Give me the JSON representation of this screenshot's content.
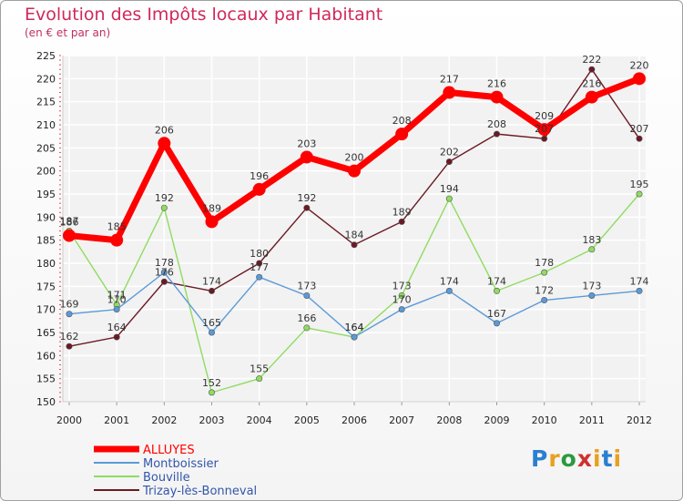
{
  "chart_data": {
    "type": "line",
    "title": "Evolution des Impôts locaux par Habitant",
    "subtitle": "(en € et par an)",
    "xlabel": "",
    "ylabel": "",
    "ylim": [
      150,
      225
    ],
    "y_ticks": [
      150,
      155,
      160,
      165,
      170,
      175,
      180,
      185,
      190,
      195,
      200,
      205,
      210,
      215,
      220,
      225
    ],
    "categories": [
      "2000",
      "2001",
      "2002",
      "2003",
      "2004",
      "2005",
      "2006",
      "2007",
      "2008",
      "2009",
      "2010",
      "2011",
      "2012"
    ],
    "grid": true,
    "legend_position": "bottom-left",
    "series": [
      {
        "name": "Trizay-lès-Bonneval",
        "color": "#6b1a24",
        "values": [
          162,
          164,
          176,
          174,
          180,
          192,
          184,
          189,
          202,
          208,
          207,
          222,
          207
        ]
      },
      {
        "name": "Bouville",
        "color": "#8fdc60",
        "values": [
          187,
          171,
          192,
          152,
          155,
          166,
          164,
          173,
          194,
          174,
          178,
          183,
          195
        ]
      },
      {
        "name": "Montboissier",
        "color": "#5a9ad8",
        "values": [
          169,
          170,
          178,
          165,
          177,
          173,
          164,
          170,
          174,
          167,
          172,
          173,
          174
        ]
      },
      {
        "name": "ALLUYES",
        "color": "#ff0000",
        "values": [
          186,
          185,
          206,
          189,
          196,
          203,
          200,
          208,
          217,
          216,
          209,
          216,
          220
        ]
      }
    ]
  },
  "branding": {
    "logo_text": "Proxiti"
  }
}
